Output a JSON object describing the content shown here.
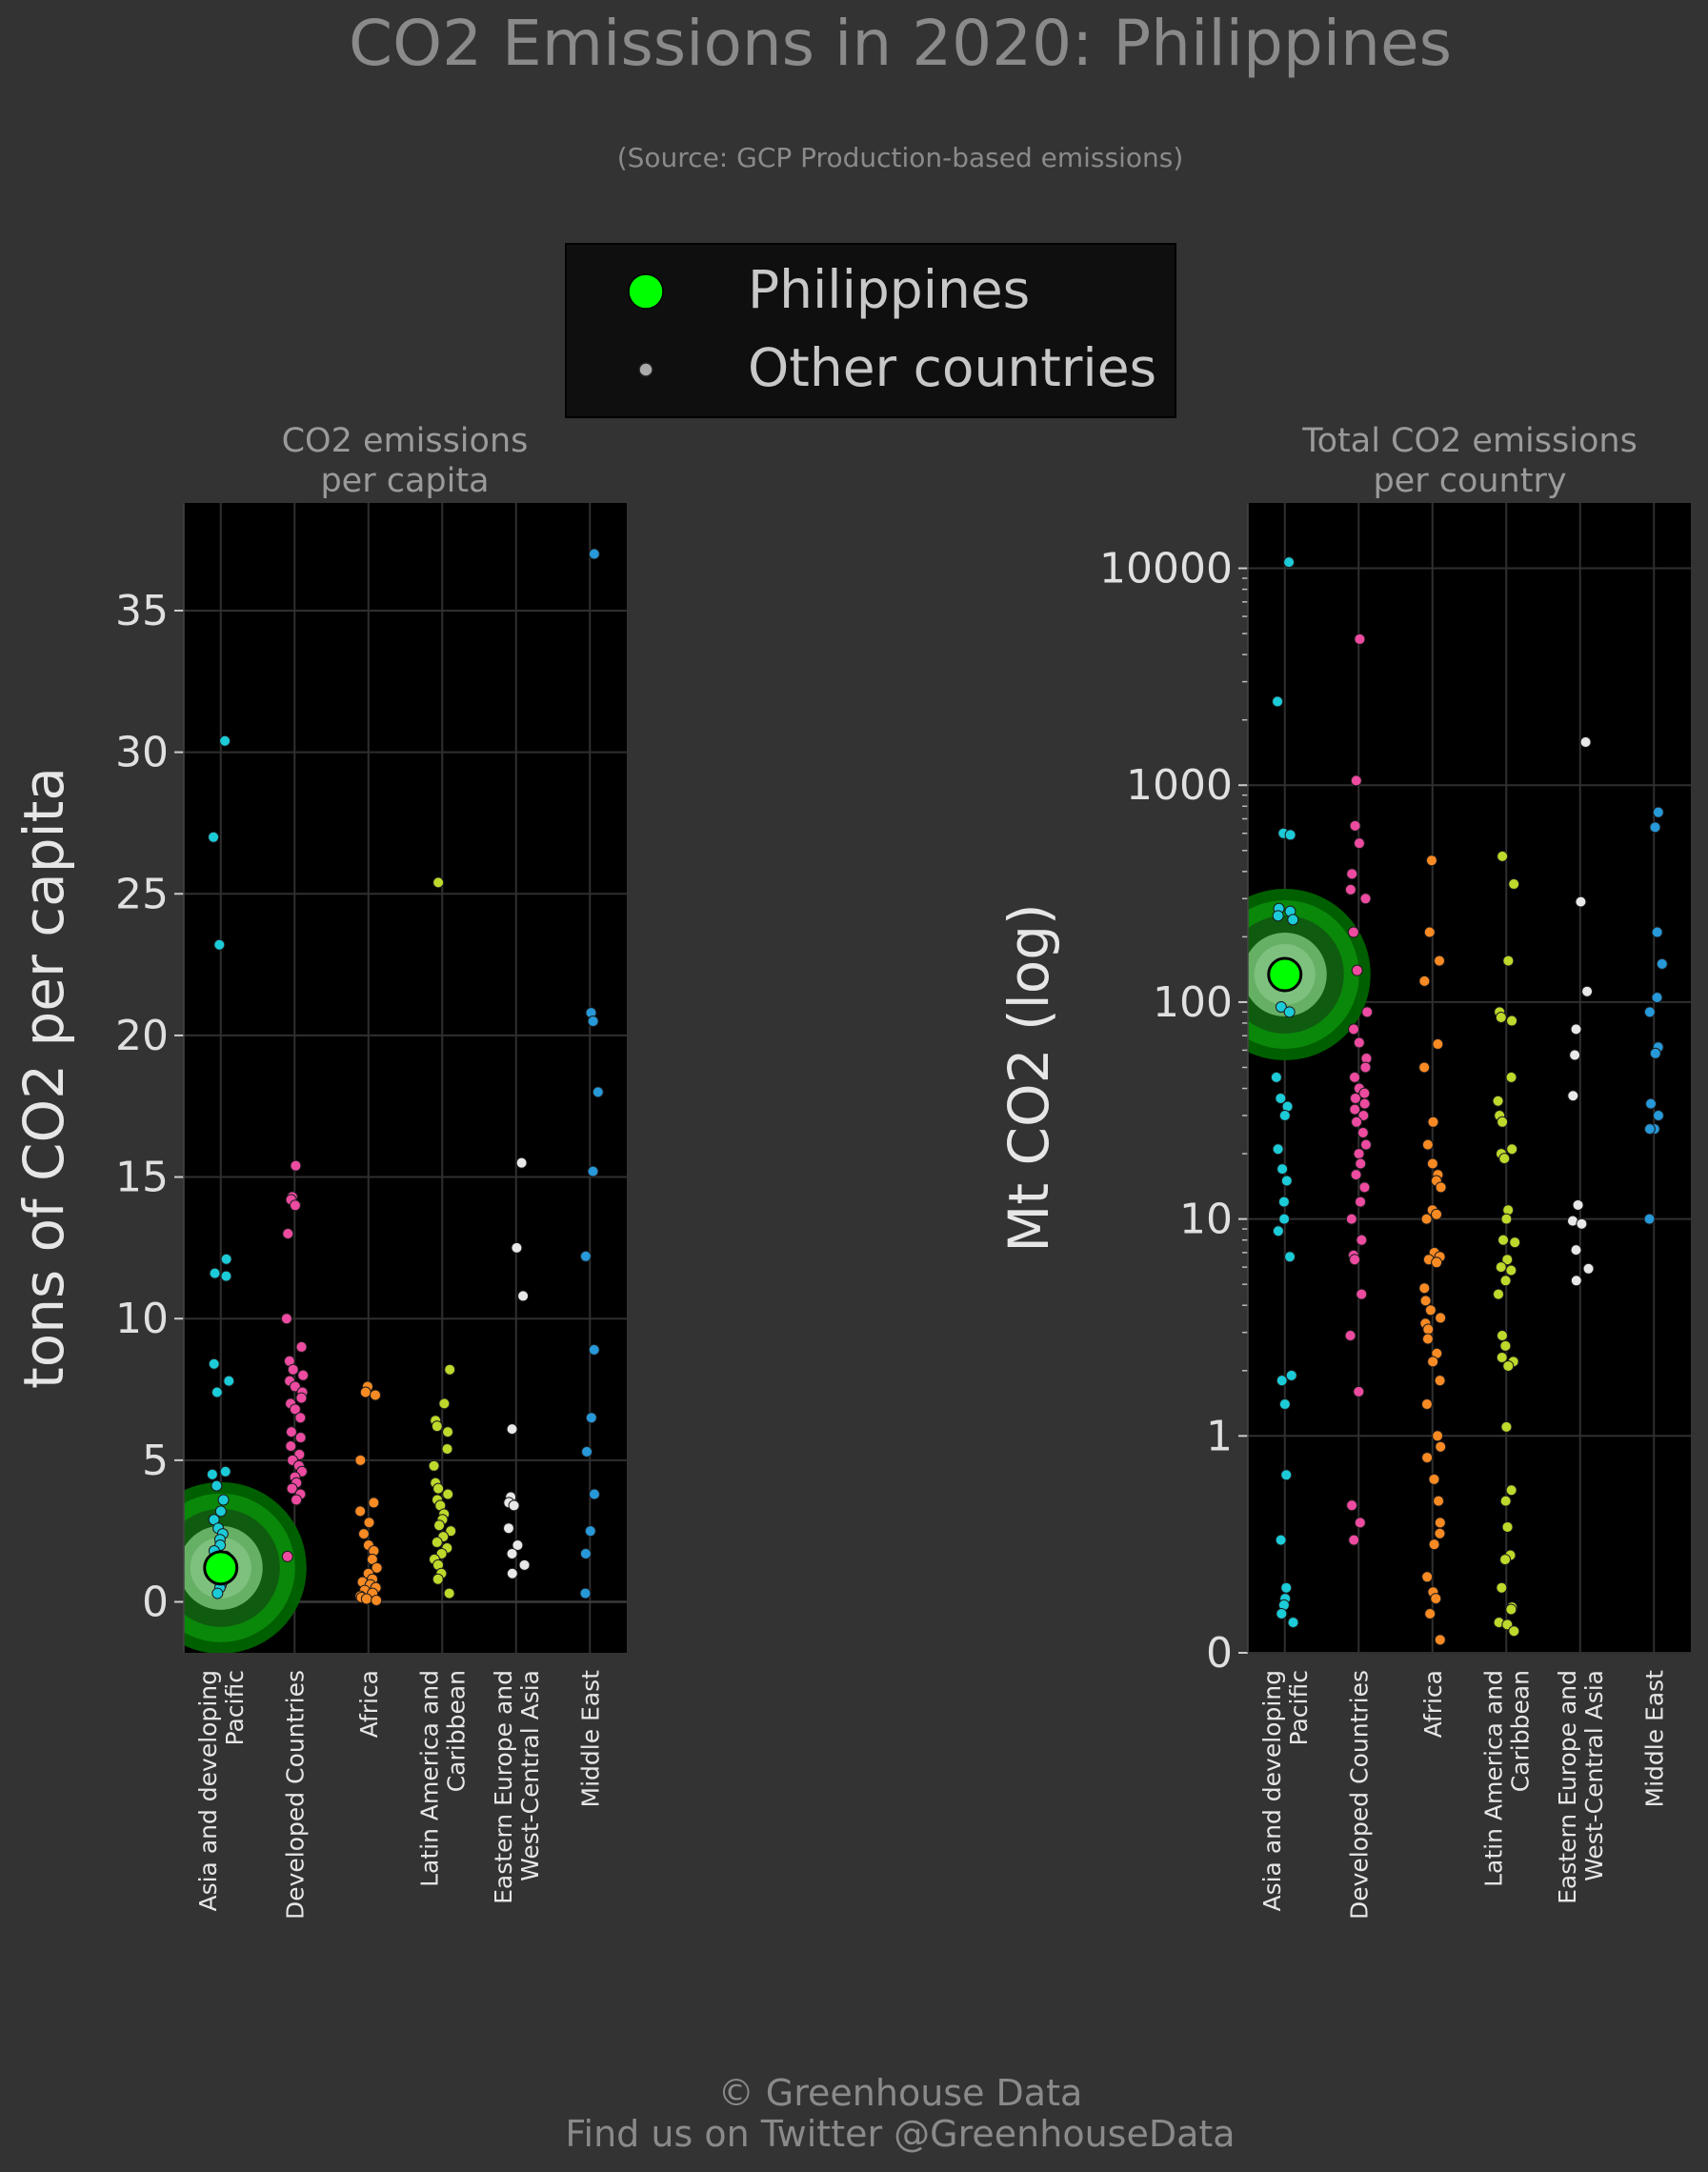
{
  "title": "CO2 Emissions in 2020: Philippines",
  "subtitle": "(Source: GCP Production-based emissions)",
  "legend": {
    "highlight_label": "Philippines",
    "other_label": "Other countries",
    "highlight_color": "#00ff00",
    "other_color": "#aaaaaa"
  },
  "footer": {
    "line1": "© Greenhouse Data",
    "line2": "Find us on Twitter @GreenhouseData"
  },
  "chart_data": [
    {
      "type": "scatter",
      "title_lines": [
        "CO2 emissions",
        "per capita"
      ],
      "ylabel": "tons of CO2 per capita",
      "ylim": [
        -1.8,
        38.8
      ],
      "yticks": [
        0,
        5,
        10,
        15,
        20,
        25,
        30,
        35
      ],
      "ytick_labels": [
        "0",
        "5",
        "10",
        "15",
        "20",
        "25",
        "30",
        "35"
      ],
      "categories": [
        [
          "Asia and developing",
          "Pacific"
        ],
        [
          "Developed Countries"
        ],
        [
          "Africa"
        ],
        [
          "Latin America and",
          "Caribbean"
        ],
        [
          "Eastern Europe and",
          "West-Central Asia"
        ],
        [
          "Middle East"
        ]
      ],
      "colors": [
        "#1ccbd8",
        "#ec4ba0",
        "#f88a24",
        "#bed82c",
        "#e8e8e8",
        "#2798d8"
      ],
      "highlight": {
        "category": 0,
        "value": 1.2
      },
      "series": [
        [
          30.4,
          27.0,
          23.2,
          12.1,
          11.6,
          11.5,
          8.4,
          7.8,
          7.4,
          4.6,
          4.5,
          4.1,
          3.6,
          3.2,
          2.9,
          2.6,
          2.4,
          2.2,
          2.0,
          1.8,
          1.6,
          1.4,
          1.2,
          1.0,
          0.9,
          0.8,
          0.7,
          0.6,
          0.5,
          0.3
        ],
        [
          15.4,
          14.3,
          14.2,
          14.0,
          13.0,
          10.0,
          9.0,
          8.5,
          8.2,
          8.0,
          7.8,
          7.6,
          7.4,
          7.2,
          7.0,
          6.8,
          6.5,
          6.0,
          5.8,
          5.5,
          5.2,
          5.0,
          4.8,
          4.6,
          4.4,
          4.2,
          4.0,
          3.8,
          3.6,
          1.6
        ],
        [
          7.6,
          7.4,
          7.3,
          5.0,
          3.5,
          3.2,
          2.8,
          2.4,
          2.0,
          1.8,
          1.5,
          1.2,
          1.0,
          0.8,
          0.7,
          0.6,
          0.5,
          0.4,
          0.3,
          0.2,
          0.15,
          0.1,
          0.05
        ],
        [
          25.4,
          8.2,
          7.0,
          6.4,
          6.2,
          6.0,
          5.4,
          4.8,
          4.2,
          4.0,
          3.8,
          3.6,
          3.4,
          3.1,
          2.9,
          2.7,
          2.5,
          2.3,
          2.1,
          1.9,
          1.7,
          1.5,
          1.3,
          1.0,
          0.8,
          0.3
        ],
        [
          15.5,
          12.5,
          10.8,
          6.1,
          3.7,
          3.5,
          3.4,
          2.6,
          2.0,
          1.7,
          1.3,
          1.0
        ],
        [
          37.0,
          20.8,
          20.5,
          18.0,
          15.2,
          12.2,
          8.9,
          6.5,
          5.3,
          3.8,
          2.5,
          1.7,
          0.3
        ]
      ]
    },
    {
      "type": "scatter",
      "title_lines": [
        "Total CO2 emissions",
        "per country"
      ],
      "ylabel": "Mt CO2 (log)",
      "yscale": "symlog",
      "ylim": [
        0,
        20000
      ],
      "yticks": [
        0,
        1,
        10,
        100,
        1000,
        10000
      ],
      "ytick_labels": [
        "0",
        "1",
        "10",
        "100",
        "1000",
        "10000"
      ],
      "categories": [
        [
          "Asia and developing",
          "Pacific"
        ],
        [
          "Developed Countries"
        ],
        [
          "Africa"
        ],
        [
          "Latin America and",
          "Caribbean"
        ],
        [
          "Eastern Europe and",
          "West-Central Asia"
        ],
        [
          "Middle East"
        ]
      ],
      "colors": [
        "#1ccbd8",
        "#ec4ba0",
        "#f88a24",
        "#bed82c",
        "#e8e8e8",
        "#2798d8"
      ],
      "highlight": {
        "category": 0,
        "value": 134
      },
      "series": [
        [
          10668,
          2430,
          600,
          590,
          270,
          262,
          250,
          240,
          95,
          90,
          45,
          36,
          33,
          30,
          21,
          17,
          15,
          12,
          10,
          8.8,
          6.7,
          1.9,
          1.8,
          1.4,
          0.82,
          0.52,
          0.3,
          0.25,
          0.22,
          0.18,
          0.14
        ],
        [
          4713,
          1050,
          650,
          540,
          390,
          330,
          300,
          210,
          140,
          90,
          75,
          65,
          55,
          50,
          45,
          40,
          38,
          36,
          34,
          32,
          30,
          28,
          25,
          22,
          20,
          18,
          16,
          14,
          12,
          10,
          8,
          6.8,
          6.5,
          4.5,
          2.9,
          1.6,
          0.68,
          0.6,
          0.52
        ],
        [
          450,
          210,
          155,
          125,
          64,
          50,
          28,
          22,
          18,
          16,
          15,
          14,
          11,
          10.5,
          10,
          7,
          6.7,
          6.5,
          6.3,
          4.8,
          4.2,
          3.8,
          3.5,
          3.3,
          3.1,
          2.8,
          2.4,
          2.2,
          1.8,
          1.4,
          1.0,
          0.95,
          0.9,
          0.8,
          0.7,
          0.6,
          0.55,
          0.5,
          0.35,
          0.28,
          0.25,
          0.18,
          0.06
        ],
        [
          470,
          350,
          155,
          90,
          85,
          82,
          45,
          35,
          30,
          28,
          21,
          20,
          19,
          11,
          10,
          8,
          7.8,
          6.5,
          6,
          5.8,
          5.2,
          4.5,
          2.9,
          2.6,
          2.3,
          2.2,
          2.1,
          1.1,
          0.75,
          0.7,
          0.58,
          0.45,
          0.43,
          0.3,
          0.21,
          0.2,
          0.14,
          0.13,
          0.1
        ],
        [
          1580,
          290,
          112,
          75,
          57,
          37,
          11.6,
          9.8,
          9.5,
          7.2,
          5.9,
          5.2
        ],
        [
          750,
          640,
          210,
          150,
          105,
          90,
          62,
          58,
          34,
          30,
          26,
          26,
          10
        ]
      ]
    }
  ]
}
